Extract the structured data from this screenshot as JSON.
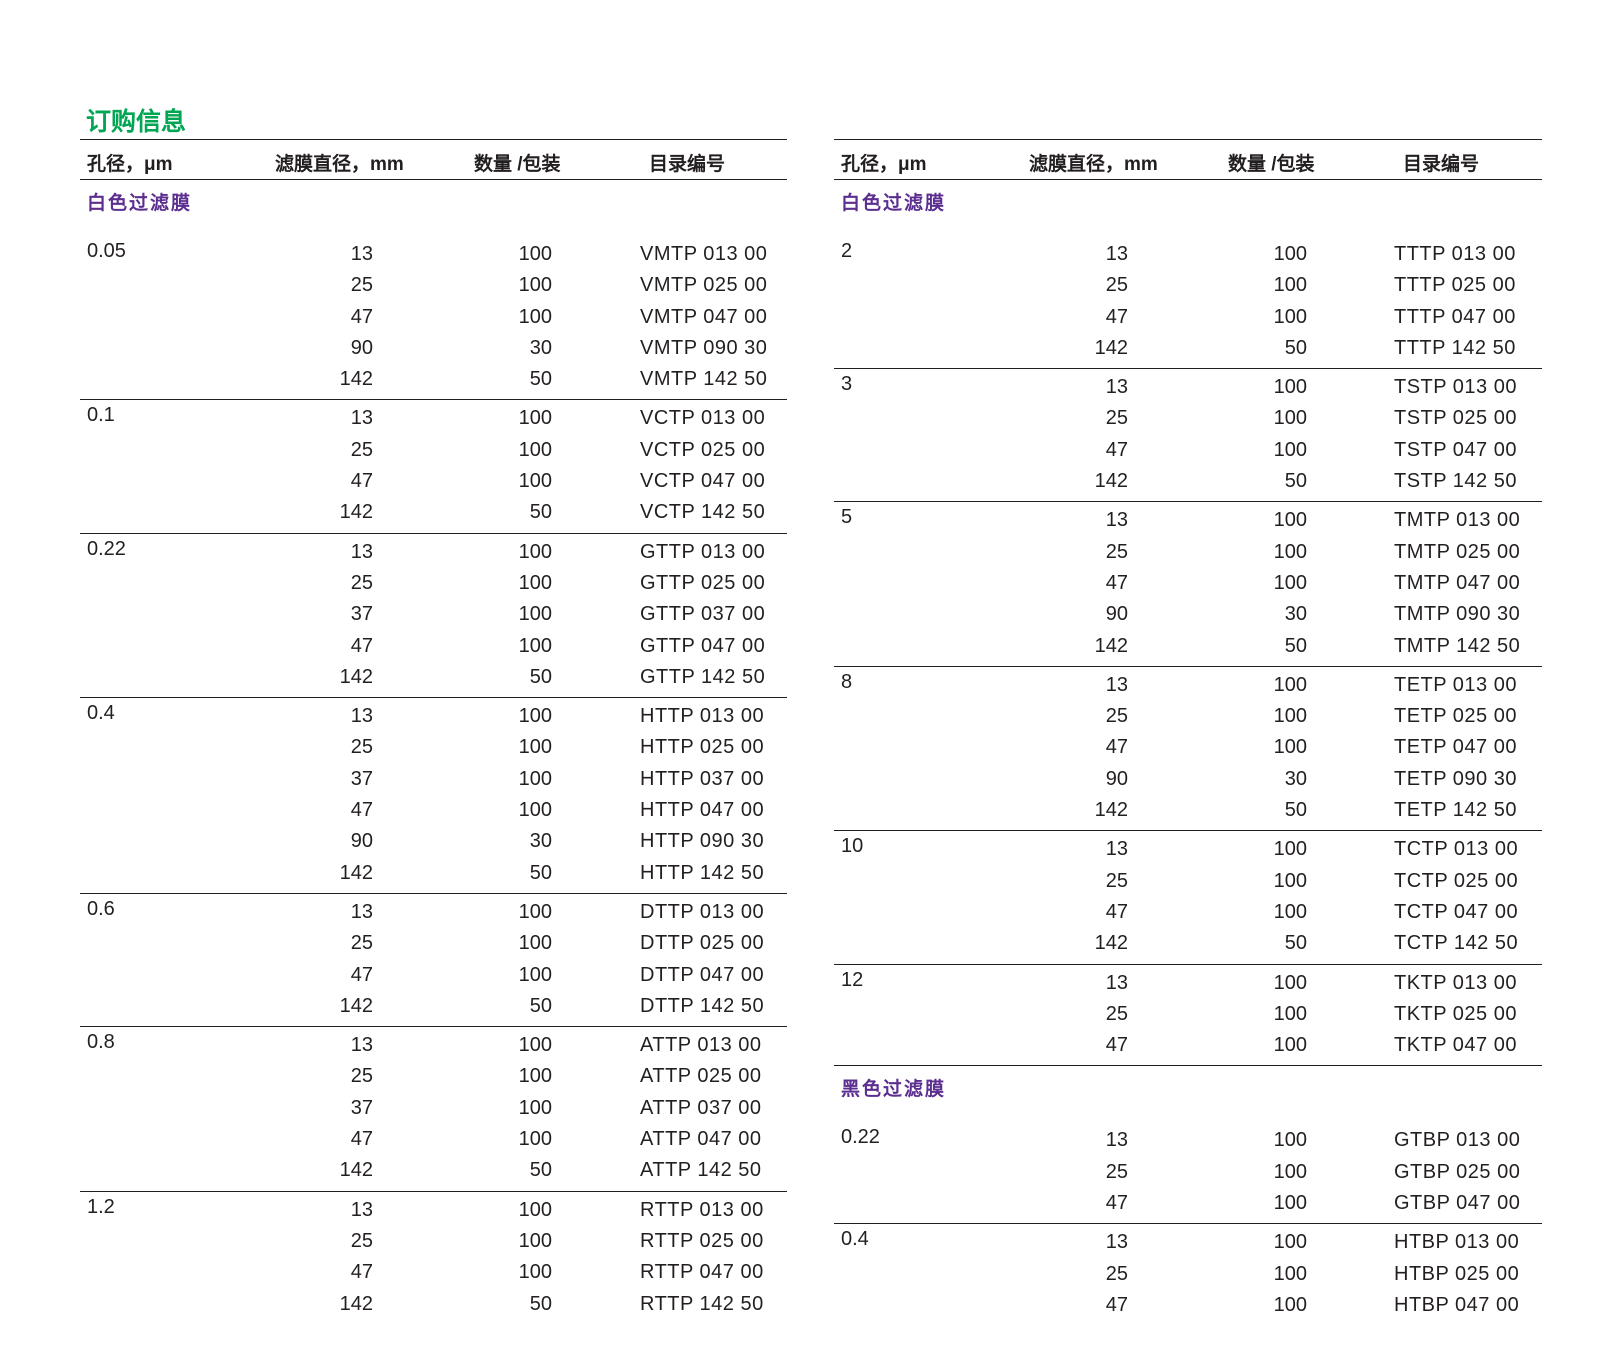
{
  "title": "订购信息",
  "headers": [
    "孔径，μm",
    "滤膜直径，mm",
    "数量 /包装",
    "目录编号"
  ],
  "colors": {
    "title": "#00a651",
    "subheading": "#5b2e90",
    "text": "#231f20"
  },
  "tables": [
    {
      "sections": [
        {
          "subheading": "白色过滤膜",
          "groups": [
            {
              "pore": "0.05",
              "rows": [
                [
                  "13",
                  "100",
                  "VMTP 013 00"
                ],
                [
                  "25",
                  "100",
                  "VMTP 025 00"
                ],
                [
                  "47",
                  "100",
                  "VMTP 047 00"
                ],
                [
                  "90",
                  "30",
                  "VMTP 090 30"
                ],
                [
                  "142",
                  "50",
                  "VMTP 142 50"
                ]
              ]
            },
            {
              "pore": "0.1",
              "rows": [
                [
                  "13",
                  "100",
                  "VCTP 013 00"
                ],
                [
                  "25",
                  "100",
                  "VCTP 025 00"
                ],
                [
                  "47",
                  "100",
                  "VCTP 047 00"
                ],
                [
                  "142",
                  "50",
                  "VCTP 142 50"
                ]
              ]
            },
            {
              "pore": "0.22",
              "rows": [
                [
                  "13",
                  "100",
                  "GTTP 013 00"
                ],
                [
                  "25",
                  "100",
                  "GTTP 025 00"
                ],
                [
                  "37",
                  "100",
                  "GTTP 037 00"
                ],
                [
                  "47",
                  "100",
                  "GTTP 047 00"
                ],
                [
                  "142",
                  "50",
                  "GTTP 142 50"
                ]
              ]
            },
            {
              "pore": "0.4",
              "rows": [
                [
                  "13",
                  "100",
                  "HTTP 013 00"
                ],
                [
                  "25",
                  "100",
                  "HTTP 025 00"
                ],
                [
                  "37",
                  "100",
                  "HTTP 037 00"
                ],
                [
                  "47",
                  "100",
                  "HTTP 047 00"
                ],
                [
                  "90",
                  "30",
                  "HTTP 090 30"
                ],
                [
                  "142",
                  "50",
                  "HTTP 142 50"
                ]
              ]
            },
            {
              "pore": "0.6",
              "rows": [
                [
                  "13",
                  "100",
                  "DTTP 013 00"
                ],
                [
                  "25",
                  "100",
                  "DTTP 025 00"
                ],
                [
                  "47",
                  "100",
                  "DTTP 047 00"
                ],
                [
                  "142",
                  "50",
                  "DTTP 142 50"
                ]
              ]
            },
            {
              "pore": "0.8",
              "rows": [
                [
                  "13",
                  "100",
                  "ATTP 013 00"
                ],
                [
                  "25",
                  "100",
                  "ATTP 025 00"
                ],
                [
                  "37",
                  "100",
                  "ATTP 037 00"
                ],
                [
                  "47",
                  "100",
                  "ATTP 047 00"
                ],
                [
                  "142",
                  "50",
                  "ATTP 142 50"
                ]
              ]
            },
            {
              "pore": "1.2",
              "rows": [
                [
                  "13",
                  "100",
                  "RTTP 013 00"
                ],
                [
                  "25",
                  "100",
                  "RTTP 025 00"
                ],
                [
                  "47",
                  "100",
                  "RTTP 047 00"
                ],
                [
                  "142",
                  "50",
                  "RTTP 142 50"
                ]
              ]
            }
          ]
        }
      ]
    },
    {
      "sections": [
        {
          "subheading": "白色过滤膜",
          "groups": [
            {
              "pore": "2",
              "rows": [
                [
                  "13",
                  "100",
                  "TTTP 013 00"
                ],
                [
                  "25",
                  "100",
                  "TTTP 025 00"
                ],
                [
                  "47",
                  "100",
                  "TTTP 047 00"
                ],
                [
                  "142",
                  "50",
                  "TTTP 142 50"
                ]
              ]
            },
            {
              "pore": "3",
              "rows": [
                [
                  "13",
                  "100",
                  "TSTP 013 00"
                ],
                [
                  "25",
                  "100",
                  "TSTP 025 00"
                ],
                [
                  "47",
                  "100",
                  "TSTP 047 00"
                ],
                [
                  "142",
                  "50",
                  "TSTP 142 50"
                ]
              ]
            },
            {
              "pore": "5",
              "rows": [
                [
                  "13",
                  "100",
                  "TMTP 013 00"
                ],
                [
                  "25",
                  "100",
                  "TMTP 025 00"
                ],
                [
                  "47",
                  "100",
                  "TMTP 047 00"
                ],
                [
                  "90",
                  "30",
                  "TMTP 090 30"
                ],
                [
                  "142",
                  "50",
                  "TMTP 142 50"
                ]
              ]
            },
            {
              "pore": "8",
              "rows": [
                [
                  "13",
                  "100",
                  "TETP 013 00"
                ],
                [
                  "25",
                  "100",
                  "TETP 025 00"
                ],
                [
                  "47",
                  "100",
                  "TETP 047 00"
                ],
                [
                  "90",
                  "30",
                  "TETP 090 30"
                ],
                [
                  "142",
                  "50",
                  "TETP 142 50"
                ]
              ]
            },
            {
              "pore": "10",
              "rows": [
                [
                  "13",
                  "100",
                  "TCTP 013 00"
                ],
                [
                  "25",
                  "100",
                  "TCTP 025 00"
                ],
                [
                  "47",
                  "100",
                  "TCTP 047 00"
                ],
                [
                  "142",
                  "50",
                  "TCTP 142 50"
                ]
              ]
            },
            {
              "pore": "12",
              "rows": [
                [
                  "13",
                  "100",
                  "TKTP 013 00"
                ],
                [
                  "25",
                  "100",
                  "TKTP 025 00"
                ],
                [
                  "47",
                  "100",
                  "TKTP 047 00"
                ]
              ]
            }
          ]
        },
        {
          "subheading": "黑色过滤膜",
          "groups": [
            {
              "pore": "0.22",
              "rows": [
                [
                  "13",
                  "100",
                  "GTBP 013 00"
                ],
                [
                  "25",
                  "100",
                  "GTBP 025 00"
                ],
                [
                  "47",
                  "100",
                  "GTBP 047 00"
                ]
              ]
            },
            {
              "pore": "0.4",
              "rows": [
                [
                  "13",
                  "100",
                  "HTBP 013 00"
                ],
                [
                  "25",
                  "100",
                  "HTBP 025 00"
                ],
                [
                  "47",
                  "100",
                  "HTBP 047 00"
                ]
              ]
            }
          ]
        }
      ]
    }
  ]
}
